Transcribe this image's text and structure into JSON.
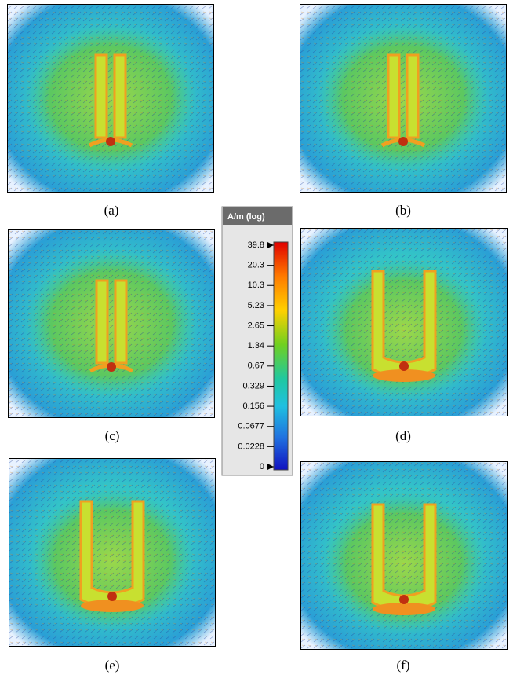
{
  "panels": [
    {
      "label": "(a)"
    },
    {
      "label": "(b)"
    },
    {
      "label": "(c)"
    },
    {
      "label": "(d)"
    },
    {
      "label": "(e)"
    },
    {
      "label": "(f)"
    }
  ],
  "legend": {
    "title": "A/m (log)",
    "ticks": [
      "39.8",
      "20.3",
      "10.3",
      "5.23",
      "2.65",
      "1.34",
      "0.67",
      "0.329",
      "0.156",
      "0.0677",
      "0.0228",
      "0"
    ]
  }
}
